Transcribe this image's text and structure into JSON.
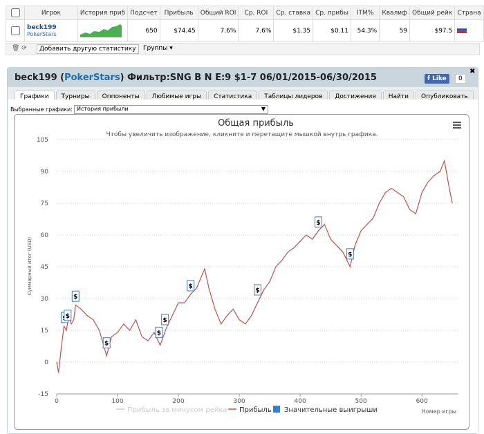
{
  "stats_table": {
    "headers": [
      "Игрок",
      "История приб",
      "Подсчет",
      "Прибыль",
      "Общий ROI",
      "Ср. ROI",
      "Ср. ставка",
      "Ср. прибы",
      "ITM%",
      "Квалиф",
      "Общий рейк",
      "Страна"
    ],
    "row": {
      "player": "beck199",
      "site": "PokerStars",
      "cells": [
        "650",
        "$74.45",
        "7.6%",
        "7.6%",
        "$1.35",
        "$0.11",
        "54.3%",
        "59",
        "$97.5"
      ]
    }
  },
  "toolbar": {
    "add_stats": "Добавить другую статистику",
    "groups": "Группы"
  },
  "panel": {
    "title_parts": [
      "beck199 (",
      "PokerStars",
      ") Фильтр:SNG B N E:9 $1-7 06/01/2015-06/30/2015"
    ],
    "like": "Like",
    "like_count": "0",
    "tabs": [
      "Графики",
      "Турниры",
      "Оппоненты",
      "Любимые игры",
      "Статистика",
      "Таблицы лидеров",
      "Достижения",
      "Найти",
      "Опубликовать"
    ],
    "select_label": "Выбранные графики:",
    "select_value": "История прибыли"
  },
  "chart_data": {
    "type": "line",
    "title": "Общая прибыль",
    "subtitle": "Чтобы увеличить изображение, кликните и перетащите мышкой внутрь графика.",
    "x_label": "Номер игры",
    "y_label": "Суммарный итог (USD)",
    "marker_symbol": "$",
    "xlim": [
      0,
      660
    ],
    "xticks": [
      0,
      100,
      200,
      300,
      400,
      500,
      600
    ],
    "ylim": [
      -15,
      105
    ],
    "yticks": [
      -15,
      0,
      15,
      30,
      45,
      60,
      75,
      90,
      105
    ],
    "grid": true,
    "series": [
      {
        "name": "Прибыль",
        "color": "#c0504d",
        "x": [
          0,
          3,
          8,
          12,
          16,
          20,
          24,
          28,
          31,
          40,
          50,
          60,
          70,
          82,
          90,
          100,
          110,
          120,
          130,
          140,
          150,
          160,
          170,
          180,
          190,
          200,
          210,
          220,
          230,
          243,
          250,
          260,
          270,
          280,
          290,
          300,
          310,
          320,
          330,
          340,
          350,
          360,
          370,
          380,
          390,
          400,
          410,
          420,
          430,
          440,
          450,
          460,
          470,
          482,
          490,
          500,
          510,
          520,
          530,
          540,
          550,
          560,
          570,
          580,
          590,
          600,
          610,
          620,
          630,
          637,
          645,
          650
        ],
        "values": [
          0,
          -5,
          8,
          17,
          15,
          22,
          18,
          20,
          27,
          25,
          22,
          20,
          15,
          3,
          12,
          14,
          18,
          15,
          20,
          12,
          10,
          14,
          8,
          16,
          22,
          28,
          28,
          32,
          35,
          44,
          35,
          25,
          18,
          22,
          25,
          20,
          18,
          22,
          28,
          34,
          38,
          45,
          48,
          52,
          54,
          57,
          60,
          58,
          62,
          65,
          58,
          55,
          52,
          45,
          55,
          62,
          65,
          68,
          75,
          80,
          82,
          80,
          78,
          72,
          70,
          80,
          85,
          88,
          90,
          95,
          82,
          75
        ]
      },
      {
        "name": "Прибыль за минусом рейка",
        "color": "#cccccc",
        "visible": false
      },
      {
        "name": "Значительные выигрыши",
        "color": "#3a7bd5",
        "x": [
          13,
          18,
          31,
          82,
          168,
          178,
          220,
          330,
          430,
          482
        ],
        "values": [
          17,
          18,
          27,
          5,
          10,
          16,
          32,
          30,
          62,
          47
        ]
      }
    ]
  }
}
